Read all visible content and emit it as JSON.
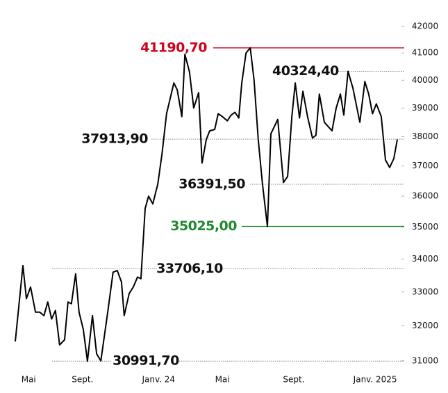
{
  "chart_data": {
    "type": "line",
    "x": [
      0,
      2,
      2.9,
      4,
      5.3,
      6.4,
      7.5,
      8.5,
      9.5,
      10.5,
      11.6,
      12.9,
      13.8,
      14.7,
      15.8,
      16.7,
      17.8,
      18.9,
      20.2,
      21.3,
      22.4,
      24.2,
      25.6,
      26.7,
      27.8,
      28.5,
      29.8,
      30.9,
      32,
      32.9,
      34,
      34.9,
      36,
      37.3,
      38.4,
      39.6,
      41.5,
      42.4,
      43.6,
      44.4,
      45.6,
      46.7,
      48,
      48.9,
      50,
      50.9,
      52.2,
      53.1,
      54.2,
      55.5,
      56.5,
      57.5,
      58.5,
      59.3,
      60.4,
      61.5,
      62.5,
      63.6,
      64.7,
      66,
      66.9,
      68.7,
      70.2,
      71.3,
      72.4,
      73.3,
      74.4,
      75.3,
      76.5,
      77.8,
      78.7,
      79.6,
      80.9,
      82.9,
      84,
      85.1,
      86,
      87.1,
      88.4,
      90.2,
      91.5,
      92.5,
      93.5,
      94.5,
      95.8,
      96.9,
      98,
      99.1,
      100
    ],
    "series": [
      {
        "color": "#000000",
        "values": [
          31550,
          33800,
          32800,
          33150,
          32400,
          32400,
          32300,
          32700,
          32200,
          32450,
          31450,
          31600,
          32700,
          32650,
          33550,
          32400,
          31900,
          30991.7,
          32300,
          31200,
          31000,
          32400,
          33600,
          33650,
          33300,
          32300,
          32950,
          33150,
          33450,
          33400,
          35600,
          36000,
          35750,
          36400,
          37400,
          38800,
          39900,
          39650,
          38700,
          40950,
          40300,
          39000,
          39550,
          37100,
          37900,
          38200,
          38250,
          38800,
          38700,
          38550,
          38750,
          38850,
          38650,
          39900,
          41000,
          41190.7,
          40000,
          37900,
          36400,
          35025,
          38100,
          38600,
          36450,
          36650,
          38700,
          39900,
          38650,
          39600,
          38700,
          37950,
          38050,
          39500,
          38500,
          38200,
          39000,
          39500,
          38750,
          40324.4,
          39700,
          38500,
          39950,
          39500,
          38800,
          39150,
          38700,
          37200,
          36950,
          37250,
          37900
        ]
      }
    ],
    "xlim": [
      0,
      100
    ],
    "xticks": [
      {
        "value": 3.5,
        "label": "Mai"
      },
      {
        "value": 17.6,
        "label": "Sept."
      },
      {
        "value": 37.5,
        "label": "Janv. 24"
      },
      {
        "value": 54.2,
        "label": "Mai"
      },
      {
        "value": 72.9,
        "label": "Sept."
      },
      {
        "value": 94.2,
        "label": "Janv. 2025"
      }
    ],
    "ylim": [
      30800,
      42200
    ],
    "yticks": [
      31000,
      32000,
      33000,
      34000,
      35000,
      36000,
      37000,
      38000,
      39000,
      40000,
      41000,
      42000
    ],
    "log_scale": true,
    "annotations": [
      {
        "value": 41190.7,
        "label": "41190,70",
        "color": "#d0021b",
        "style": "solid"
      },
      {
        "value": 40324.4,
        "label": "40324,40",
        "color": "#111111",
        "style": "dotted"
      },
      {
        "value": 37913.9,
        "label": "37913,90",
        "color": "#111111",
        "style": "dotted"
      },
      {
        "value": 36391.5,
        "label": "36391,50",
        "color": "#111111",
        "style": "dotted"
      },
      {
        "value": 35025,
        "label": "35025,00",
        "color": "#1e8a2e",
        "style": "solid"
      },
      {
        "value": 33706.1,
        "label": "33706,10",
        "color": "#111111",
        "style": "dotted"
      },
      {
        "value": 30991.7,
        "label": "30991,70",
        "color": "#111111",
        "style": "dotted"
      }
    ]
  }
}
